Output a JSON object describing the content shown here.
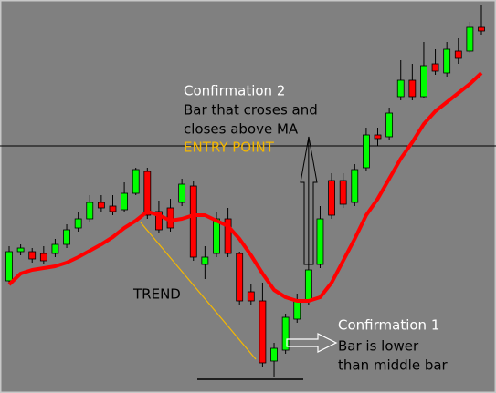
{
  "chart_data": {
    "type": "candlestick",
    "ylim": [
      0,
      431
    ],
    "up_color": "#00ff00",
    "down_color": "#ff0000",
    "candles": {
      "open": [
        123,
        155,
        155,
        153,
        153,
        163,
        181,
        191,
        209,
        205,
        201,
        219,
        243,
        199,
        203,
        209,
        227,
        141,
        153,
        191,
        153,
        111,
        101,
        35,
        47,
        81,
        101,
        141,
        233,
        233,
        209,
        247,
        283,
        281,
        325,
        343,
        325,
        361,
        351,
        375,
        375,
        401
      ],
      "high": [
        161,
        163,
        159,
        161,
        169,
        185,
        199,
        217,
        217,
        217,
        231,
        247,
        247,
        211,
        213,
        235,
        233,
        161,
        199,
        203,
        155,
        119,
        121,
        55,
        87,
        109,
        281,
        205,
        241,
        241,
        251,
        291,
        291,
        313,
        365,
        361,
        385,
        377,
        385,
        389,
        407,
        425
      ],
      "low": [
        119,
        151,
        143,
        141,
        149,
        159,
        177,
        187,
        199,
        195,
        199,
        217,
        191,
        175,
        177,
        205,
        145,
        125,
        149,
        149,
        97,
        97,
        29,
        17,
        43,
        77,
        97,
        137,
        191,
        203,
        205,
        243,
        271,
        277,
        321,
        321,
        323,
        349,
        347,
        361,
        373,
        393
      ],
      "close": [
        155,
        159,
        147,
        145,
        163,
        179,
        191,
        209,
        203,
        199,
        219,
        245,
        195,
        179,
        181,
        229,
        149,
        149,
        191,
        153,
        101,
        101,
        33,
        49,
        83,
        101,
        135,
        191,
        195,
        207,
        245,
        283,
        279,
        307,
        343,
        325,
        359,
        353,
        377,
        367,
        401,
        397
      ]
    },
    "moving_average": {
      "color": "#ff0000",
      "values": [
        119,
        131,
        135,
        137,
        139,
        143,
        149,
        156,
        163,
        171,
        181,
        189,
        199,
        195,
        189,
        191,
        195,
        195,
        189,
        183,
        169,
        151,
        131,
        113,
        105,
        101,
        101,
        105,
        121,
        145,
        169,
        195,
        213,
        235,
        257,
        275,
        295,
        309,
        319,
        329,
        339,
        351
      ]
    },
    "level_line": 271,
    "support_line": 15,
    "annotations": {
      "confirmation_2": {
        "title": "Confirmation 2",
        "line1": "Bar that croses and",
        "line2": "closes above MA",
        "entry": "ENTRY POINT"
      },
      "trend": "TREND",
      "confirmation_1": {
        "title": "Confirmation 1",
        "line1": "Bar is lower",
        "line2": "than middle bar"
      }
    }
  }
}
